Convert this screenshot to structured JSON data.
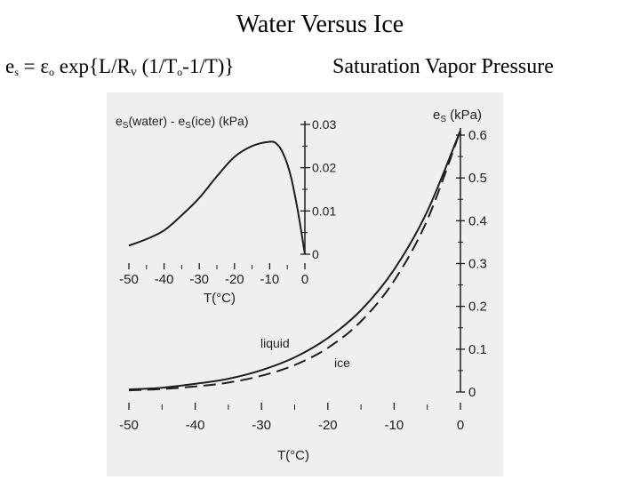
{
  "slide": {
    "title": "Water Versus Ice",
    "equation": {
      "e": "e",
      "e_sub": "s",
      "eq": " = ε",
      "eps_sub": "o",
      "body1": " exp{L/R",
      "r_sub": "v",
      "body2": " (1/T",
      "t_sub": "o",
      "body3": "-1/T)}"
    },
    "panel_label": "Saturation Vapor Pressure"
  },
  "chart_data": [
    {
      "type": "line",
      "xlabel": "T(°C)",
      "ylabel": "eS (kPa)",
      "xlim": [
        -50,
        0
      ],
      "ylim": [
        0,
        0.6
      ],
      "xticks": [
        "-50",
        "-40",
        "-30",
        "-20",
        "-10",
        "0"
      ],
      "yticks": [
        "0",
        "0.1",
        "0.2",
        "0.3",
        "0.4",
        "0.5",
        "0.6"
      ],
      "annotations": [
        "liquid",
        "ice"
      ],
      "series": [
        {
          "name": "liquid",
          "style": "solid",
          "x": [
            -50,
            -45,
            -40,
            -35,
            -30,
            -25,
            -20,
            -15,
            -10,
            -5,
            0
          ],
          "y": [
            0.006,
            0.01,
            0.019,
            0.031,
            0.051,
            0.081,
            0.126,
            0.191,
            0.286,
            0.422,
            0.611
          ]
        },
        {
          "name": "ice",
          "style": "dashed",
          "x": [
            -50,
            -45,
            -40,
            -35,
            -30,
            -25,
            -20,
            -15,
            -10,
            -5,
            0
          ],
          "y": [
            0.004,
            0.007,
            0.013,
            0.022,
            0.038,
            0.063,
            0.103,
            0.165,
            0.26,
            0.402,
            0.611
          ]
        }
      ]
    },
    {
      "type": "line",
      "xlabel": "T(°C)",
      "ylabel": "eS(water) - eS(ice) (kPa)",
      "xlim": [
        -50,
        0
      ],
      "ylim": [
        0,
        0.03
      ],
      "xticks": [
        "-50",
        "-40",
        "-30",
        "-20",
        "-10",
        "0"
      ],
      "yticks": [
        "0",
        "0.01",
        "0.02",
        "0.03"
      ],
      "series": [
        {
          "x": [
            -50,
            -45,
            -40,
            -35,
            -30,
            -25,
            -20,
            -15,
            -10,
            -8,
            -6,
            -4,
            -2,
            0
          ],
          "y": [
            0.002,
            0.0035,
            0.0055,
            0.009,
            0.013,
            0.018,
            0.0225,
            0.025,
            0.026,
            0.0255,
            0.023,
            0.018,
            0.01,
            0.0
          ]
        }
      ]
    }
  ],
  "colors": {
    "scan_background": "#f1efee",
    "ink": "#1d1d1d"
  }
}
